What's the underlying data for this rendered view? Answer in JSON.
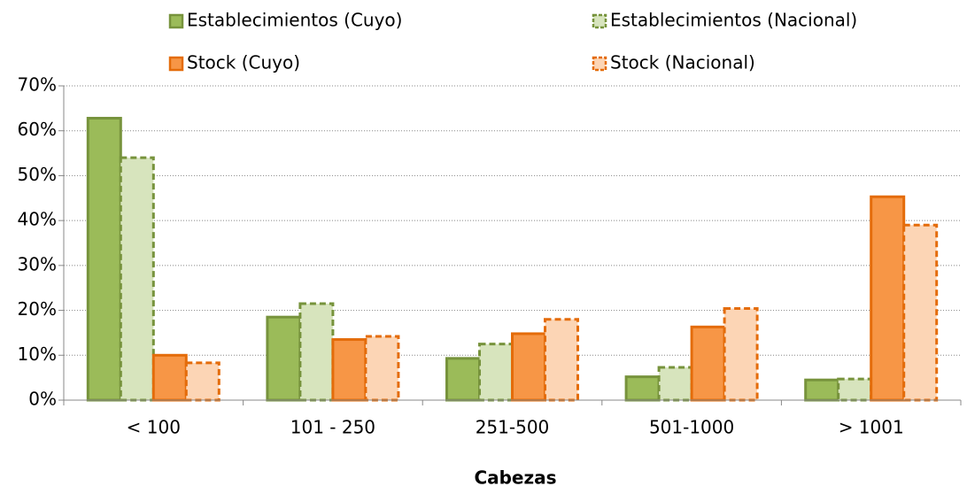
{
  "chart_data": {
    "type": "bar",
    "x_label": "Cabezas",
    "categories": [
      "< 100",
      "101 - 250",
      "251-500",
      "501-1000",
      "> 1001"
    ],
    "series": [
      {
        "name": "Establecimientos (Cuyo)",
        "color": "#9bbb59",
        "edge": "#77933c",
        "dashed": false,
        "values": [
          62.8,
          18.5,
          9.3,
          5.2,
          4.5
        ]
      },
      {
        "name": "Establecimientos (Nacional)",
        "color": "#d7e4bd",
        "edge": "#77933c",
        "dashed": true,
        "values": [
          54,
          21.5,
          12.5,
          7.3,
          4.7
        ]
      },
      {
        "name": "Stock (Cuyo)",
        "color": "#f79646",
        "edge": "#e46c0a",
        "dashed": false,
        "values": [
          10,
          13.5,
          14.8,
          16.3,
          45.3
        ]
      },
      {
        "name": "Stock (Nacional)",
        "color": "#fcd5b5",
        "edge": "#e46c0a",
        "dashed": true,
        "values": [
          8.3,
          14.2,
          18,
          20.4,
          39
        ]
      }
    ],
    "ylim": [
      0,
      70
    ],
    "yticks": [
      {
        "value": 0,
        "label": "0%"
      },
      {
        "value": 10,
        "label": "10%"
      },
      {
        "value": 20,
        "label": "20%"
      },
      {
        "value": 30,
        "label": "30%"
      },
      {
        "value": 40,
        "label": "40%"
      },
      {
        "value": 50,
        "label": "50%"
      },
      {
        "value": 60,
        "label": "60%"
      },
      {
        "value": 70,
        "label": "70%"
      }
    ],
    "grid": true
  }
}
